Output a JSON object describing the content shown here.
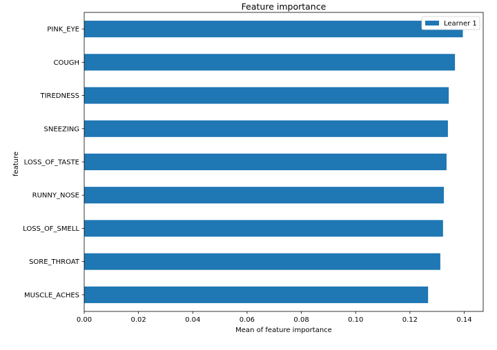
{
  "chart_data": {
    "type": "bar",
    "orientation": "horizontal",
    "title": "Feature importance",
    "xlabel": "Mean of feature importance",
    "ylabel": "feature",
    "xlim": [
      0.0,
      0.147
    ],
    "xticks": [
      "0.00",
      "0.02",
      "0.04",
      "0.06",
      "0.08",
      "0.10",
      "0.12",
      "0.14"
    ],
    "categories": [
      "PINK_EYE",
      "COUGH",
      "TIREDNESS",
      "SNEEZING",
      "LOSS_OF_TASTE",
      "RUNNY_NOSE",
      "LOSS_OF_SMELL",
      "SORE_THROAT",
      "MUSCLE_ACHES"
    ],
    "series": [
      {
        "name": "Learner 1",
        "color": "#1f77b4",
        "values": [
          0.1395,
          0.1366,
          0.1343,
          0.134,
          0.1335,
          0.1325,
          0.1322,
          0.1312,
          0.1267
        ]
      }
    ],
    "grid": false,
    "legend": "top-right"
  }
}
